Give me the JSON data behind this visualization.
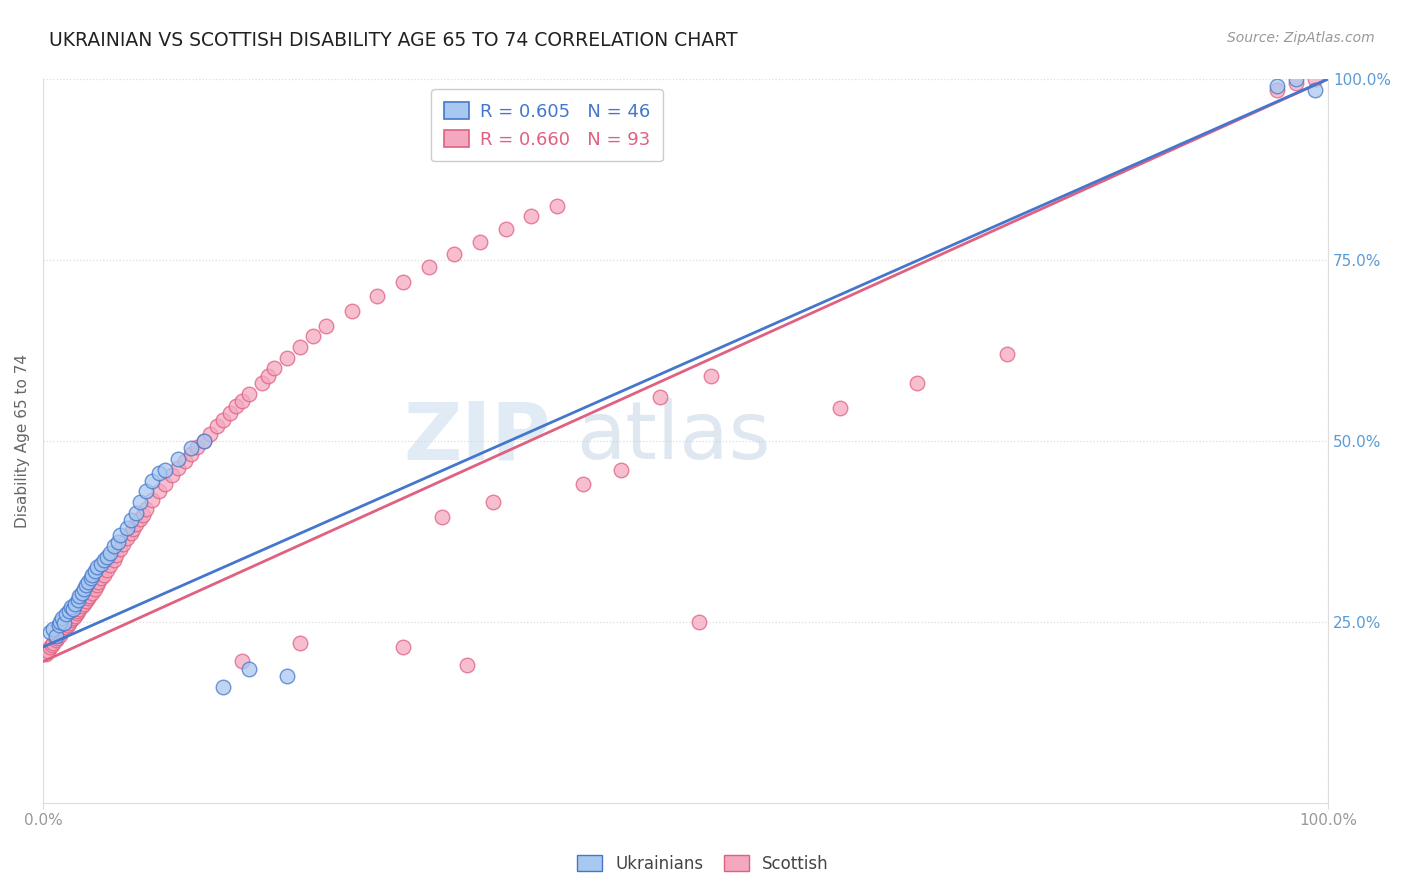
{
  "title": "UKRAINIAN VS SCOTTISH DISABILITY AGE 65 TO 74 CORRELATION CHART",
  "source": "Source: ZipAtlas.com",
  "ylabel": "Disability Age 65 to 74",
  "xlim": [
    0.0,
    1.0
  ],
  "ylim": [
    0.0,
    1.0
  ],
  "legend_bottom": [
    "Ukrainians",
    "Scottish"
  ],
  "blue_R": 0.605,
  "blue_N": 46,
  "pink_R": 0.66,
  "pink_N": 93,
  "blue_color": "#A8C8F0",
  "pink_color": "#F4A8C0",
  "line_blue": "#4477CC",
  "line_pink": "#E06080",
  "title_color": "#222222",
  "grid_color": "#DDDDDD",
  "tick_color": "#999999",
  "right_tick_color": "#5B9BD5",
  "blue_x": [
    0.005,
    0.008,
    0.01,
    0.012,
    0.013,
    0.015,
    0.016,
    0.018,
    0.02,
    0.022,
    0.023,
    0.025,
    0.027,
    0.028,
    0.03,
    0.032,
    0.033,
    0.035,
    0.037,
    0.038,
    0.04,
    0.042,
    0.045,
    0.047,
    0.05,
    0.052,
    0.055,
    0.058,
    0.06,
    0.065,
    0.068,
    0.072,
    0.075,
    0.08,
    0.085,
    0.09,
    0.095,
    0.105,
    0.115,
    0.125,
    0.14,
    0.16,
    0.19,
    0.96,
    0.975,
    0.99
  ],
  "blue_y": [
    0.235,
    0.24,
    0.23,
    0.245,
    0.25,
    0.255,
    0.248,
    0.26,
    0.265,
    0.27,
    0.268,
    0.275,
    0.28,
    0.285,
    0.29,
    0.295,
    0.3,
    0.305,
    0.31,
    0.315,
    0.32,
    0.325,
    0.33,
    0.335,
    0.34,
    0.345,
    0.355,
    0.36,
    0.37,
    0.38,
    0.39,
    0.4,
    0.415,
    0.43,
    0.445,
    0.455,
    0.46,
    0.475,
    0.49,
    0.5,
    0.16,
    0.185,
    0.175,
    0.99,
    1.0,
    0.985
  ],
  "pink_x": [
    0.002,
    0.004,
    0.005,
    0.007,
    0.008,
    0.01,
    0.011,
    0.013,
    0.014,
    0.015,
    0.016,
    0.018,
    0.019,
    0.02,
    0.022,
    0.023,
    0.025,
    0.026,
    0.027,
    0.028,
    0.03,
    0.032,
    0.033,
    0.035,
    0.036,
    0.038,
    0.04,
    0.042,
    0.043,
    0.045,
    0.047,
    0.05,
    0.052,
    0.055,
    0.057,
    0.06,
    0.062,
    0.065,
    0.068,
    0.07,
    0.072,
    0.075,
    0.078,
    0.08,
    0.085,
    0.09,
    0.095,
    0.1,
    0.105,
    0.11,
    0.115,
    0.12,
    0.125,
    0.13,
    0.135,
    0.14,
    0.145,
    0.15,
    0.155,
    0.16,
    0.17,
    0.175,
    0.18,
    0.19,
    0.2,
    0.21,
    0.22,
    0.24,
    0.26,
    0.28,
    0.3,
    0.32,
    0.34,
    0.36,
    0.38,
    0.4,
    0.31,
    0.35,
    0.42,
    0.45,
    0.48,
    0.52,
    0.62,
    0.68,
    0.75,
    0.155,
    0.2,
    0.28,
    0.33,
    0.51,
    0.96,
    0.975,
    0.99
  ],
  "pink_y": [
    0.205,
    0.21,
    0.215,
    0.218,
    0.22,
    0.225,
    0.228,
    0.232,
    0.235,
    0.238,
    0.24,
    0.243,
    0.246,
    0.248,
    0.252,
    0.255,
    0.258,
    0.262,
    0.265,
    0.268,
    0.272,
    0.275,
    0.278,
    0.282,
    0.285,
    0.29,
    0.295,
    0.3,
    0.305,
    0.31,
    0.315,
    0.322,
    0.328,
    0.335,
    0.342,
    0.35,
    0.357,
    0.365,
    0.372,
    0.378,
    0.385,
    0.392,
    0.398,
    0.405,
    0.418,
    0.43,
    0.44,
    0.452,
    0.462,
    0.472,
    0.482,
    0.492,
    0.5,
    0.51,
    0.52,
    0.528,
    0.538,
    0.548,
    0.555,
    0.565,
    0.58,
    0.59,
    0.6,
    0.615,
    0.63,
    0.645,
    0.658,
    0.68,
    0.7,
    0.72,
    0.74,
    0.758,
    0.775,
    0.792,
    0.81,
    0.825,
    0.395,
    0.415,
    0.44,
    0.46,
    0.56,
    0.59,
    0.545,
    0.58,
    0.62,
    0.195,
    0.22,
    0.215,
    0.19,
    0.25,
    0.985,
    0.995,
    1.0
  ],
  "blue_line_x0": 0.0,
  "blue_line_y0": 0.215,
  "blue_line_x1": 1.0,
  "blue_line_y1": 1.0,
  "pink_line_x0": 0.0,
  "pink_line_y0": 0.195,
  "pink_line_x1": 1.0,
  "pink_line_y1": 1.0
}
